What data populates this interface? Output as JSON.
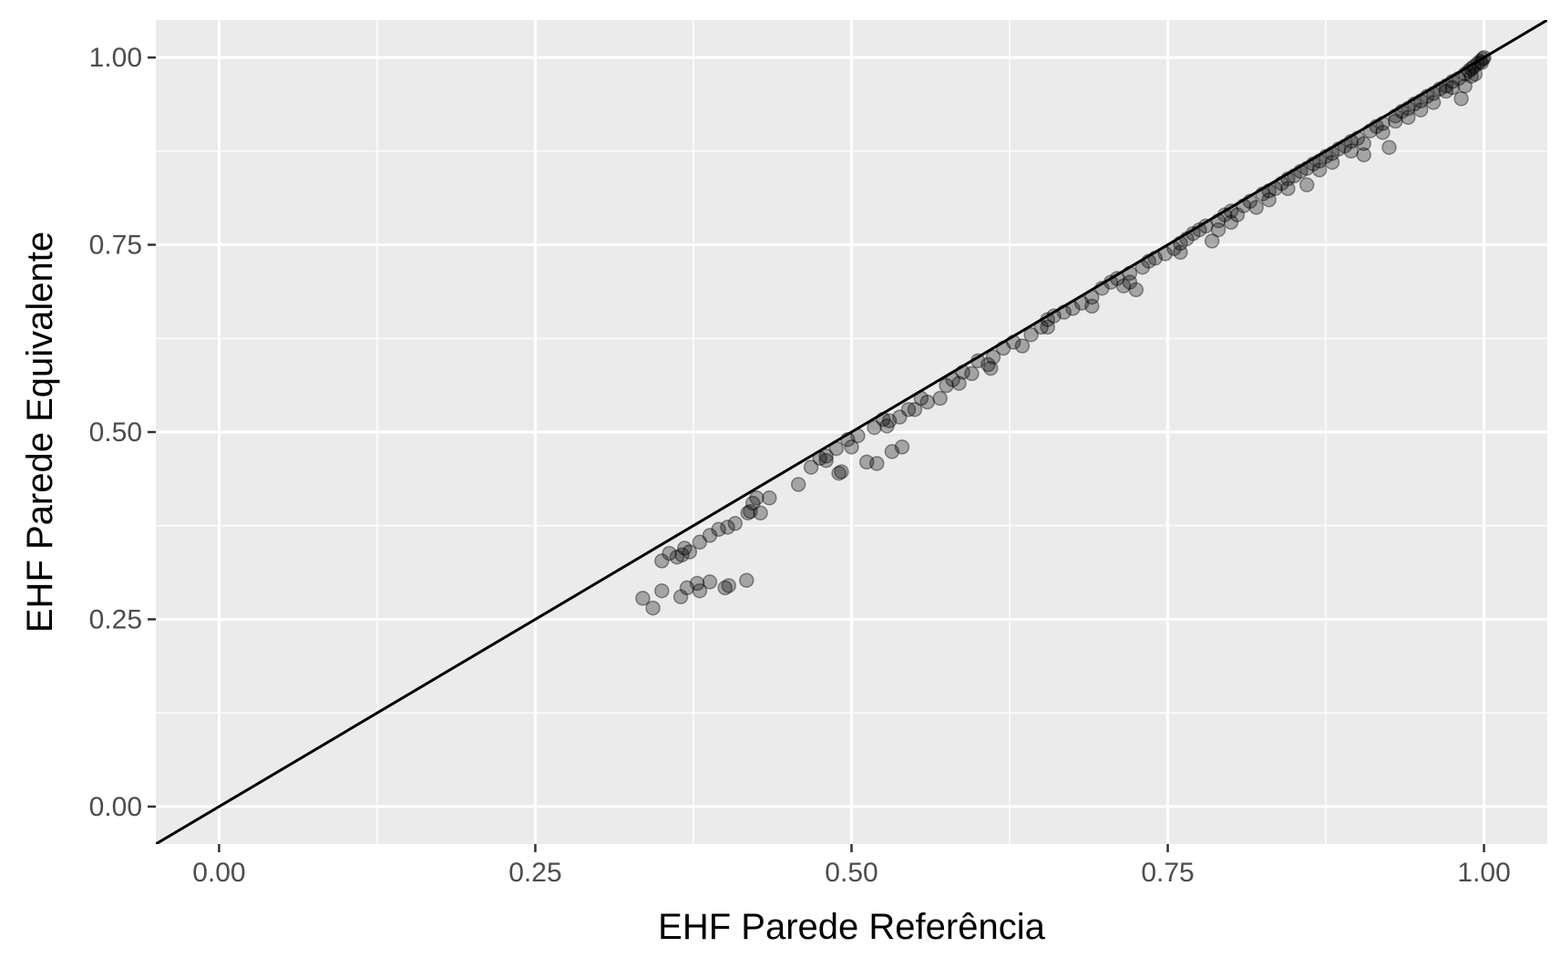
{
  "chart_data": {
    "type": "scatter",
    "title": "",
    "xlabel": "EHF Parede Referência",
    "ylabel": "EHF Parede Equivalente",
    "xlim": [
      -0.05,
      1.05
    ],
    "ylim": [
      -0.05,
      1.05
    ],
    "x_ticks": [
      0.0,
      0.25,
      0.5,
      0.75,
      1.0
    ],
    "y_ticks": [
      0.0,
      0.25,
      0.5,
      0.75,
      1.0
    ],
    "x_tick_labels": [
      "0.00",
      "0.25",
      "0.50",
      "0.75",
      "1.00"
    ],
    "y_tick_labels": [
      "0.00",
      "0.25",
      "0.50",
      "0.75",
      "1.00"
    ],
    "grid": true,
    "panel_background": "#ebebeb",
    "grid_color": "#ffffff",
    "point_color": "#000000",
    "point_alpha": 0.3,
    "reference_line": {
      "slope": 1,
      "intercept": 0,
      "color": "#000000"
    },
    "points": [
      [
        0.335,
        0.278
      ],
      [
        0.343,
        0.265
      ],
      [
        0.35,
        0.288
      ],
      [
        0.365,
        0.28
      ],
      [
        0.37,
        0.292
      ],
      [
        0.378,
        0.298
      ],
      [
        0.38,
        0.288
      ],
      [
        0.388,
        0.3
      ],
      [
        0.4,
        0.292
      ],
      [
        0.403,
        0.295
      ],
      [
        0.417,
        0.302
      ],
      [
        0.35,
        0.328
      ],
      [
        0.356,
        0.338
      ],
      [
        0.362,
        0.333
      ],
      [
        0.366,
        0.336
      ],
      [
        0.368,
        0.345
      ],
      [
        0.372,
        0.34
      ],
      [
        0.38,
        0.353
      ],
      [
        0.388,
        0.362
      ],
      [
        0.395,
        0.37
      ],
      [
        0.402,
        0.373
      ],
      [
        0.408,
        0.378
      ],
      [
        0.418,
        0.392
      ],
      [
        0.422,
        0.405
      ],
      [
        0.428,
        0.392
      ],
      [
        0.435,
        0.412
      ],
      [
        0.42,
        0.394
      ],
      [
        0.425,
        0.412
      ],
      [
        0.458,
        0.43
      ],
      [
        0.468,
        0.453
      ],
      [
        0.475,
        0.465
      ],
      [
        0.48,
        0.468
      ],
      [
        0.488,
        0.478
      ],
      [
        0.49,
        0.445
      ],
      [
        0.492,
        0.447
      ],
      [
        0.497,
        0.49
      ],
      [
        0.505,
        0.495
      ],
      [
        0.512,
        0.46
      ],
      [
        0.518,
        0.506
      ],
      [
        0.52,
        0.458
      ],
      [
        0.525,
        0.517
      ],
      [
        0.528,
        0.508
      ],
      [
        0.532,
        0.474
      ],
      [
        0.538,
        0.52
      ],
      [
        0.54,
        0.48
      ],
      [
        0.545,
        0.53
      ],
      [
        0.555,
        0.545
      ],
      [
        0.56,
        0.54
      ],
      [
        0.57,
        0.545
      ],
      [
        0.575,
        0.562
      ],
      [
        0.58,
        0.57
      ],
      [
        0.588,
        0.58
      ],
      [
        0.595,
        0.578
      ],
      [
        0.6,
        0.595
      ],
      [
        0.608,
        0.59
      ],
      [
        0.612,
        0.6
      ],
      [
        0.62,
        0.612
      ],
      [
        0.628,
        0.62
      ],
      [
        0.635,
        0.615
      ],
      [
        0.642,
        0.63
      ],
      [
        0.65,
        0.64
      ],
      [
        0.655,
        0.65
      ],
      [
        0.66,
        0.655
      ],
      [
        0.668,
        0.66
      ],
      [
        0.675,
        0.665
      ],
      [
        0.682,
        0.672
      ],
      [
        0.69,
        0.68
      ],
      [
        0.698,
        0.692
      ],
      [
        0.705,
        0.7
      ],
      [
        0.71,
        0.705
      ],
      [
        0.715,
        0.695
      ],
      [
        0.72,
        0.712
      ],
      [
        0.725,
        0.69
      ],
      [
        0.73,
        0.72
      ],
      [
        0.735,
        0.728
      ],
      [
        0.74,
        0.732
      ],
      [
        0.748,
        0.738
      ],
      [
        0.755,
        0.745
      ],
      [
        0.76,
        0.752
      ],
      [
        0.765,
        0.758
      ],
      [
        0.77,
        0.765
      ],
      [
        0.775,
        0.77
      ],
      [
        0.78,
        0.775
      ],
      [
        0.785,
        0.755
      ],
      [
        0.79,
        0.782
      ],
      [
        0.795,
        0.79
      ],
      [
        0.8,
        0.795
      ],
      [
        0.805,
        0.79
      ],
      [
        0.81,
        0.802
      ],
      [
        0.815,
        0.808
      ],
      [
        0.82,
        0.8
      ],
      [
        0.825,
        0.818
      ],
      [
        0.83,
        0.822
      ],
      [
        0.835,
        0.825
      ],
      [
        0.84,
        0.832
      ],
      [
        0.845,
        0.838
      ],
      [
        0.85,
        0.842
      ],
      [
        0.855,
        0.848
      ],
      [
        0.86,
        0.852
      ],
      [
        0.865,
        0.858
      ],
      [
        0.87,
        0.862
      ],
      [
        0.875,
        0.868
      ],
      [
        0.88,
        0.872
      ],
      [
        0.885,
        0.878
      ],
      [
        0.89,
        0.882
      ],
      [
        0.895,
        0.888
      ],
      [
        0.9,
        0.892
      ],
      [
        0.905,
        0.87
      ],
      [
        0.91,
        0.902
      ],
      [
        0.915,
        0.908
      ],
      [
        0.92,
        0.912
      ],
      [
        0.925,
        0.88
      ],
      [
        0.93,
        0.922
      ],
      [
        0.935,
        0.928
      ],
      [
        0.94,
        0.932
      ],
      [
        0.945,
        0.938
      ],
      [
        0.95,
        0.942
      ],
      [
        0.955,
        0.948
      ],
      [
        0.96,
        0.952
      ],
      [
        0.965,
        0.958
      ],
      [
        0.97,
        0.962
      ],
      [
        0.975,
        0.968
      ],
      [
        0.98,
        0.972
      ],
      [
        0.982,
        0.945
      ],
      [
        0.985,
        0.978
      ],
      [
        0.988,
        0.982
      ],
      [
        0.99,
        0.985
      ],
      [
        0.992,
        0.988
      ],
      [
        0.995,
        0.992
      ],
      [
        0.997,
        0.995
      ],
      [
        0.999,
        0.998
      ],
      [
        1.0,
        1.0
      ],
      [
        0.998,
        0.993
      ],
      [
        0.76,
        0.74
      ],
      [
        0.8,
        0.78
      ],
      [
        0.845,
        0.825
      ],
      [
        0.88,
        0.86
      ],
      [
        0.92,
        0.9
      ],
      [
        0.95,
        0.93
      ],
      [
        0.97,
        0.955
      ],
      [
        0.99,
        0.975
      ],
      [
        0.72,
        0.7
      ],
      [
        0.69,
        0.668
      ],
      [
        0.655,
        0.64
      ],
      [
        0.61,
        0.585
      ],
      [
        0.585,
        0.565
      ],
      [
        0.55,
        0.53
      ],
      [
        0.53,
        0.515
      ],
      [
        0.5,
        0.48
      ],
      [
        0.48,
        0.462
      ],
      [
        0.86,
        0.83
      ],
      [
        0.905,
        0.885
      ],
      [
        0.94,
        0.92
      ],
      [
        0.975,
        0.96
      ],
      [
        0.79,
        0.77
      ],
      [
        0.83,
        0.81
      ],
      [
        0.87,
        0.85
      ],
      [
        0.895,
        0.875
      ],
      [
        0.93,
        0.915
      ],
      [
        0.96,
        0.94
      ],
      [
        0.993,
        0.978
      ],
      [
        0.985,
        0.962
      ]
    ]
  }
}
